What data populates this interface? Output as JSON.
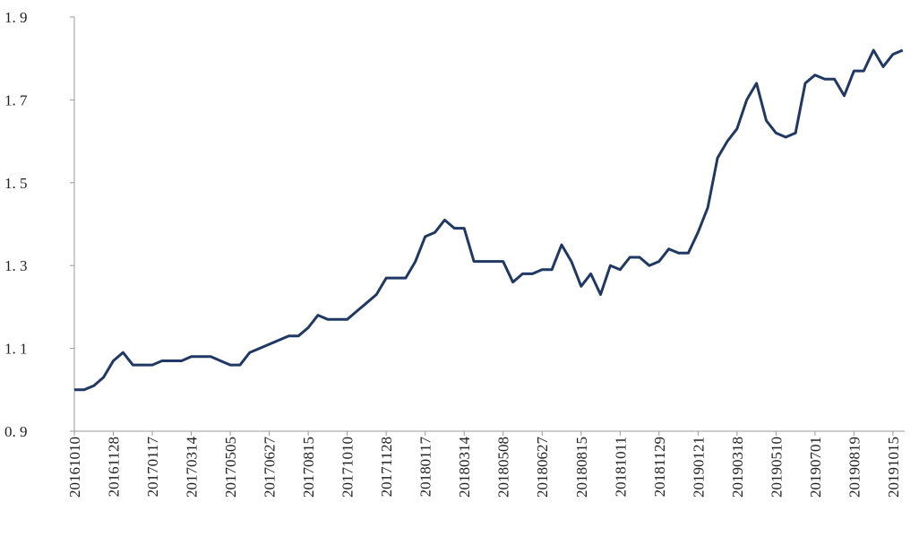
{
  "chart_data": {
    "type": "line",
    "categories": [
      "20161010",
      null,
      null,
      null,
      "20161128",
      null,
      null,
      null,
      "20170117",
      null,
      null,
      null,
      "20170314",
      null,
      null,
      null,
      "20170505",
      null,
      null,
      null,
      "20170627",
      null,
      null,
      null,
      "20170815",
      null,
      null,
      null,
      "20171010",
      null,
      null,
      null,
      "20171128",
      null,
      null,
      null,
      "20180117",
      null,
      null,
      null,
      "20180314",
      null,
      null,
      null,
      "20180508",
      null,
      null,
      null,
      "20180627",
      null,
      null,
      null,
      "20180815",
      null,
      null,
      null,
      "20181011",
      null,
      null,
      null,
      "20181129",
      null,
      null,
      null,
      "20190121",
      null,
      null,
      null,
      "20190318",
      null,
      null,
      null,
      "20190510",
      null,
      null,
      null,
      "20190701",
      null,
      null,
      null,
      "20190819",
      null,
      null,
      null,
      "20191015",
      null
    ],
    "values": [
      1.0,
      1.0,
      1.01,
      1.03,
      1.07,
      1.09,
      1.06,
      1.06,
      1.06,
      1.07,
      1.07,
      1.07,
      1.08,
      1.08,
      1.08,
      1.07,
      1.06,
      1.06,
      1.09,
      1.1,
      1.11,
      1.12,
      1.13,
      1.13,
      1.15,
      1.18,
      1.17,
      1.17,
      1.17,
      1.19,
      1.21,
      1.23,
      1.27,
      1.27,
      1.27,
      1.31,
      1.37,
      1.38,
      1.41,
      1.39,
      1.39,
      1.31,
      1.31,
      1.31,
      1.31,
      1.26,
      1.28,
      1.28,
      1.29,
      1.29,
      1.35,
      1.31,
      1.25,
      1.28,
      1.23,
      1.3,
      1.29,
      1.32,
      1.32,
      1.3,
      1.31,
      1.34,
      1.33,
      1.33,
      1.38,
      1.44,
      1.56,
      1.6,
      1.63,
      1.7,
      1.74,
      1.65,
      1.62,
      1.61,
      1.62,
      1.74,
      1.76,
      1.75,
      1.75,
      1.71,
      1.77,
      1.77,
      1.82,
      1.78,
      1.81,
      1.82
    ],
    "color": "#203864",
    "ylim": [
      0.9,
      1.9
    ],
    "yticks": [
      {
        "value": 0.9,
        "label": "0. 9"
      },
      {
        "value": 1.1,
        "label": "1. 1"
      },
      {
        "value": 1.3,
        "label": "1. 3"
      },
      {
        "value": 1.5,
        "label": "1. 5"
      },
      {
        "value": 1.7,
        "label": "1. 7"
      },
      {
        "value": 1.9,
        "label": "1. 9"
      }
    ]
  }
}
